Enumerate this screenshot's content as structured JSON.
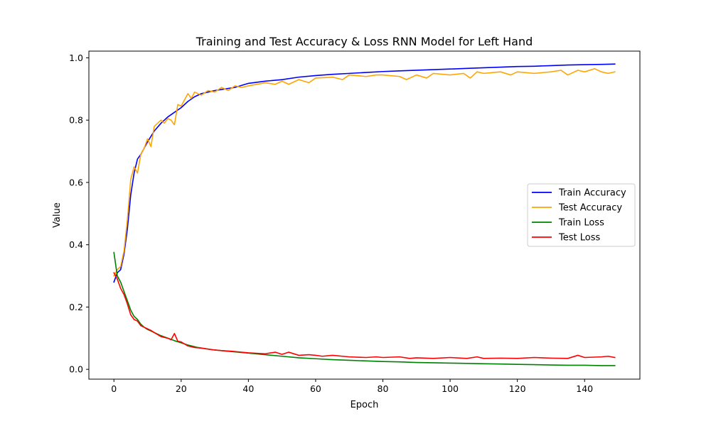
{
  "chart_data": {
    "type": "line",
    "title": "Training and Test Accuracy & Loss RNN Model for Left Hand",
    "xlabel": "Epoch",
    "ylabel": "Value",
    "xlim": [
      -7.45,
      156.45
    ],
    "ylim": [
      -0.0315,
      1.0215
    ],
    "xticks": [
      0,
      20,
      40,
      60,
      80,
      100,
      120,
      140
    ],
    "yticks": [
      0.0,
      0.2,
      0.4,
      0.6,
      0.8,
      1.0
    ],
    "xtick_labels": [
      "0",
      "20",
      "40",
      "60",
      "80",
      "100",
      "120",
      "140"
    ],
    "ytick_labels": [
      "0.0",
      "0.2",
      "0.4",
      "0.6",
      "0.8",
      "1.0"
    ],
    "grid": false,
    "legend_position": "center-right",
    "series": [
      {
        "name": "Train Accuracy",
        "color": "#0000ff",
        "points": [
          [
            0,
            0.28
          ],
          [
            1,
            0.31
          ],
          [
            2,
            0.32
          ],
          [
            3,
            0.37
          ],
          [
            4,
            0.45
          ],
          [
            5,
            0.56
          ],
          [
            6,
            0.63
          ],
          [
            7,
            0.675
          ],
          [
            8,
            0.69
          ],
          [
            9,
            0.71
          ],
          [
            10,
            0.73
          ],
          [
            12,
            0.765
          ],
          [
            14,
            0.79
          ],
          [
            16,
            0.81
          ],
          [
            18,
            0.825
          ],
          [
            20,
            0.84
          ],
          [
            22,
            0.86
          ],
          [
            24,
            0.875
          ],
          [
            26,
            0.885
          ],
          [
            28,
            0.89
          ],
          [
            30,
            0.895
          ],
          [
            33,
            0.9
          ],
          [
            36,
            0.905
          ],
          [
            40,
            0.918
          ],
          [
            45,
            0.925
          ],
          [
            50,
            0.93
          ],
          [
            55,
            0.938
          ],
          [
            60,
            0.943
          ],
          [
            65,
            0.947
          ],
          [
            70,
            0.95
          ],
          [
            75,
            0.953
          ],
          [
            80,
            0.956
          ],
          [
            85,
            0.958
          ],
          [
            90,
            0.96
          ],
          [
            95,
            0.962
          ],
          [
            100,
            0.964
          ],
          [
            105,
            0.966
          ],
          [
            110,
            0.968
          ],
          [
            115,
            0.97
          ],
          [
            120,
            0.972
          ],
          [
            125,
            0.973
          ],
          [
            130,
            0.975
          ],
          [
            135,
            0.977
          ],
          [
            140,
            0.978
          ],
          [
            145,
            0.979
          ],
          [
            149,
            0.98
          ]
        ]
      },
      {
        "name": "Test Accuracy",
        "color": "#ffa500",
        "points": [
          [
            0,
            0.3
          ],
          [
            1,
            0.32
          ],
          [
            2,
            0.33
          ],
          [
            3,
            0.38
          ],
          [
            4,
            0.48
          ],
          [
            5,
            0.61
          ],
          [
            6,
            0.65
          ],
          [
            7,
            0.63
          ],
          [
            8,
            0.69
          ],
          [
            9,
            0.71
          ],
          [
            10,
            0.74
          ],
          [
            11,
            0.715
          ],
          [
            12,
            0.78
          ],
          [
            14,
            0.8
          ],
          [
            15,
            0.79
          ],
          [
            16,
            0.805
          ],
          [
            17,
            0.8
          ],
          [
            18,
            0.785
          ],
          [
            19,
            0.85
          ],
          [
            20,
            0.845
          ],
          [
            22,
            0.885
          ],
          [
            23,
            0.87
          ],
          [
            24,
            0.89
          ],
          [
            26,
            0.88
          ],
          [
            28,
            0.895
          ],
          [
            30,
            0.89
          ],
          [
            32,
            0.905
          ],
          [
            34,
            0.895
          ],
          [
            36,
            0.91
          ],
          [
            38,
            0.905
          ],
          [
            40,
            0.91
          ],
          [
            45,
            0.92
          ],
          [
            48,
            0.915
          ],
          [
            50,
            0.925
          ],
          [
            52,
            0.915
          ],
          [
            55,
            0.93
          ],
          [
            58,
            0.92
          ],
          [
            60,
            0.935
          ],
          [
            65,
            0.938
          ],
          [
            68,
            0.93
          ],
          [
            70,
            0.945
          ],
          [
            75,
            0.94
          ],
          [
            78,
            0.945
          ],
          [
            80,
            0.945
          ],
          [
            85,
            0.94
          ],
          [
            87,
            0.93
          ],
          [
            90,
            0.945
          ],
          [
            93,
            0.935
          ],
          [
            95,
            0.95
          ],
          [
            100,
            0.945
          ],
          [
            104,
            0.95
          ],
          [
            106,
            0.935
          ],
          [
            108,
            0.955
          ],
          [
            110,
            0.95
          ],
          [
            115,
            0.955
          ],
          [
            118,
            0.945
          ],
          [
            120,
            0.955
          ],
          [
            125,
            0.95
          ],
          [
            130,
            0.955
          ],
          [
            133,
            0.96
          ],
          [
            135,
            0.945
          ],
          [
            138,
            0.96
          ],
          [
            140,
            0.955
          ],
          [
            143,
            0.965
          ],
          [
            145,
            0.955
          ],
          [
            147,
            0.95
          ],
          [
            149,
            0.955
          ]
        ]
      },
      {
        "name": "Train Loss",
        "color": "#008000",
        "points": [
          [
            0,
            0.375
          ],
          [
            1,
            0.3
          ],
          [
            2,
            0.28
          ],
          [
            3,
            0.25
          ],
          [
            4,
            0.22
          ],
          [
            5,
            0.19
          ],
          [
            6,
            0.17
          ],
          [
            7,
            0.16
          ],
          [
            8,
            0.145
          ],
          [
            9,
            0.135
          ],
          [
            10,
            0.128
          ],
          [
            12,
            0.118
          ],
          [
            14,
            0.108
          ],
          [
            16,
            0.1
          ],
          [
            18,
            0.092
          ],
          [
            20,
            0.085
          ],
          [
            22,
            0.078
          ],
          [
            25,
            0.07
          ],
          [
            28,
            0.065
          ],
          [
            30,
            0.062
          ],
          [
            35,
            0.057
          ],
          [
            40,
            0.052
          ],
          [
            45,
            0.047
          ],
          [
            50,
            0.042
          ],
          [
            55,
            0.037
          ],
          [
            60,
            0.034
          ],
          [
            65,
            0.031
          ],
          [
            70,
            0.029
          ],
          [
            75,
            0.027
          ],
          [
            80,
            0.025
          ],
          [
            85,
            0.024
          ],
          [
            90,
            0.022
          ],
          [
            95,
            0.021
          ],
          [
            100,
            0.02
          ],
          [
            105,
            0.019
          ],
          [
            110,
            0.018
          ],
          [
            115,
            0.017
          ],
          [
            120,
            0.016
          ],
          [
            125,
            0.015
          ],
          [
            130,
            0.014
          ],
          [
            135,
            0.013
          ],
          [
            140,
            0.013
          ],
          [
            145,
            0.012
          ],
          [
            149,
            0.012
          ]
        ]
      },
      {
        "name": "Test Loss",
        "color": "#ff0000",
        "points": [
          [
            0,
            0.31
          ],
          [
            1,
            0.29
          ],
          [
            2,
            0.26
          ],
          [
            3,
            0.24
          ],
          [
            4,
            0.21
          ],
          [
            5,
            0.175
          ],
          [
            6,
            0.16
          ],
          [
            7,
            0.155
          ],
          [
            8,
            0.14
          ],
          [
            9,
            0.135
          ],
          [
            10,
            0.13
          ],
          [
            11,
            0.125
          ],
          [
            12,
            0.118
          ],
          [
            14,
            0.105
          ],
          [
            16,
            0.1
          ],
          [
            17,
            0.095
          ],
          [
            18,
            0.115
          ],
          [
            19,
            0.09
          ],
          [
            20,
            0.088
          ],
          [
            22,
            0.075
          ],
          [
            24,
            0.07
          ],
          [
            26,
            0.068
          ],
          [
            28,
            0.065
          ],
          [
            30,
            0.062
          ],
          [
            32,
            0.06
          ],
          [
            35,
            0.058
          ],
          [
            38,
            0.055
          ],
          [
            40,
            0.053
          ],
          [
            45,
            0.05
          ],
          [
            48,
            0.055
          ],
          [
            50,
            0.048
          ],
          [
            52,
            0.055
          ],
          [
            55,
            0.045
          ],
          [
            58,
            0.047
          ],
          [
            60,
            0.045
          ],
          [
            62,
            0.042
          ],
          [
            65,
            0.045
          ],
          [
            70,
            0.04
          ],
          [
            75,
            0.038
          ],
          [
            78,
            0.04
          ],
          [
            80,
            0.038
          ],
          [
            85,
            0.04
          ],
          [
            88,
            0.035
          ],
          [
            90,
            0.037
          ],
          [
            95,
            0.035
          ],
          [
            100,
            0.038
          ],
          [
            105,
            0.035
          ],
          [
            108,
            0.04
          ],
          [
            110,
            0.035
          ],
          [
            115,
            0.036
          ],
          [
            120,
            0.035
          ],
          [
            125,
            0.038
          ],
          [
            130,
            0.036
          ],
          [
            135,
            0.035
          ],
          [
            138,
            0.045
          ],
          [
            140,
            0.038
          ],
          [
            145,
            0.04
          ],
          [
            147,
            0.042
          ],
          [
            149,
            0.038
          ]
        ]
      }
    ]
  }
}
